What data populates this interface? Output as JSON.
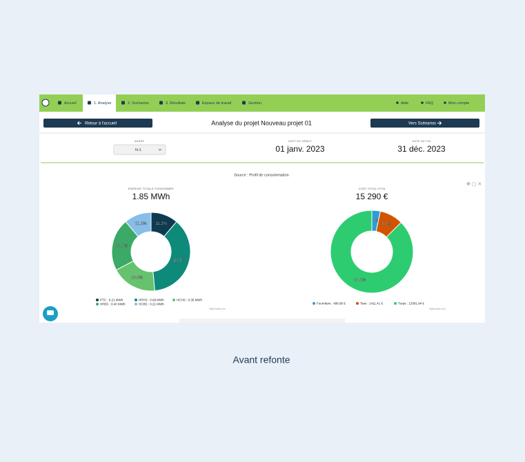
{
  "nav": {
    "items": [
      "Accueil",
      "1. Analyse",
      "2. Scénarios",
      "3. Résultats",
      "Espace de travail",
      "Gestion"
    ],
    "right": [
      "Aide",
      "FAQ",
      "Mon compte"
    ]
  },
  "header": {
    "back": "Retour à l'accueil",
    "title": "Analyse du projet Nouveau projet 01",
    "next": "Vers Scénarios"
  },
  "fields": [
    {
      "label": "ANNÉE",
      "value": "N-1"
    },
    {
      "label": "DATE DE DÉBUT",
      "value": "01 janv. 2023"
    },
    {
      "label": "DATE DE FIN",
      "value": "31 déc. 2023"
    }
  ],
  "source": "Source : Profil de consommation",
  "chart_data": [
    {
      "type": "donut",
      "subtitle": "ÉNERGIE TOTALE CONSOMMÉE",
      "title": "1.85 MWh",
      "categories": [
        "PTC : 0.21 MWh",
        "HPHS : 0.69 MWh",
        "HCHS : 0.35 MWh",
        "HPBS : 0.40 MWh",
        "HCBS : 0.21 MWh"
      ],
      "values": [
        11.2,
        37.3,
        18.8,
        21.5,
        11.2
      ],
      "value_labels": [
        "11.2%",
        "37.3%",
        "18.8%",
        "21.5%",
        "11.2%"
      ],
      "colors": [
        "#0d3b4f",
        "#0e8a7a",
        "#66c26e",
        "#3aaa66",
        "#86bde9"
      ],
      "credit": "Highcharts.com"
    },
    {
      "type": "donut",
      "subtitle": "COÛT TOTAL HTVA",
      "title": "15 290 €",
      "categories": [
        "Fourniture : 496.95 €",
        "Taxe : 1411.41 €",
        "Turpe : 13381.94 €"
      ],
      "values": [
        3.3,
        9.2,
        87.5
      ],
      "value_labels": [
        "3.3%",
        "9.2%",
        "87.5%"
      ],
      "colors": [
        "#2a9fd6",
        "#d35400",
        "#2ecc71"
      ],
      "credit": "Highcharts.com"
    }
  ],
  "caption": "Avant refonte"
}
